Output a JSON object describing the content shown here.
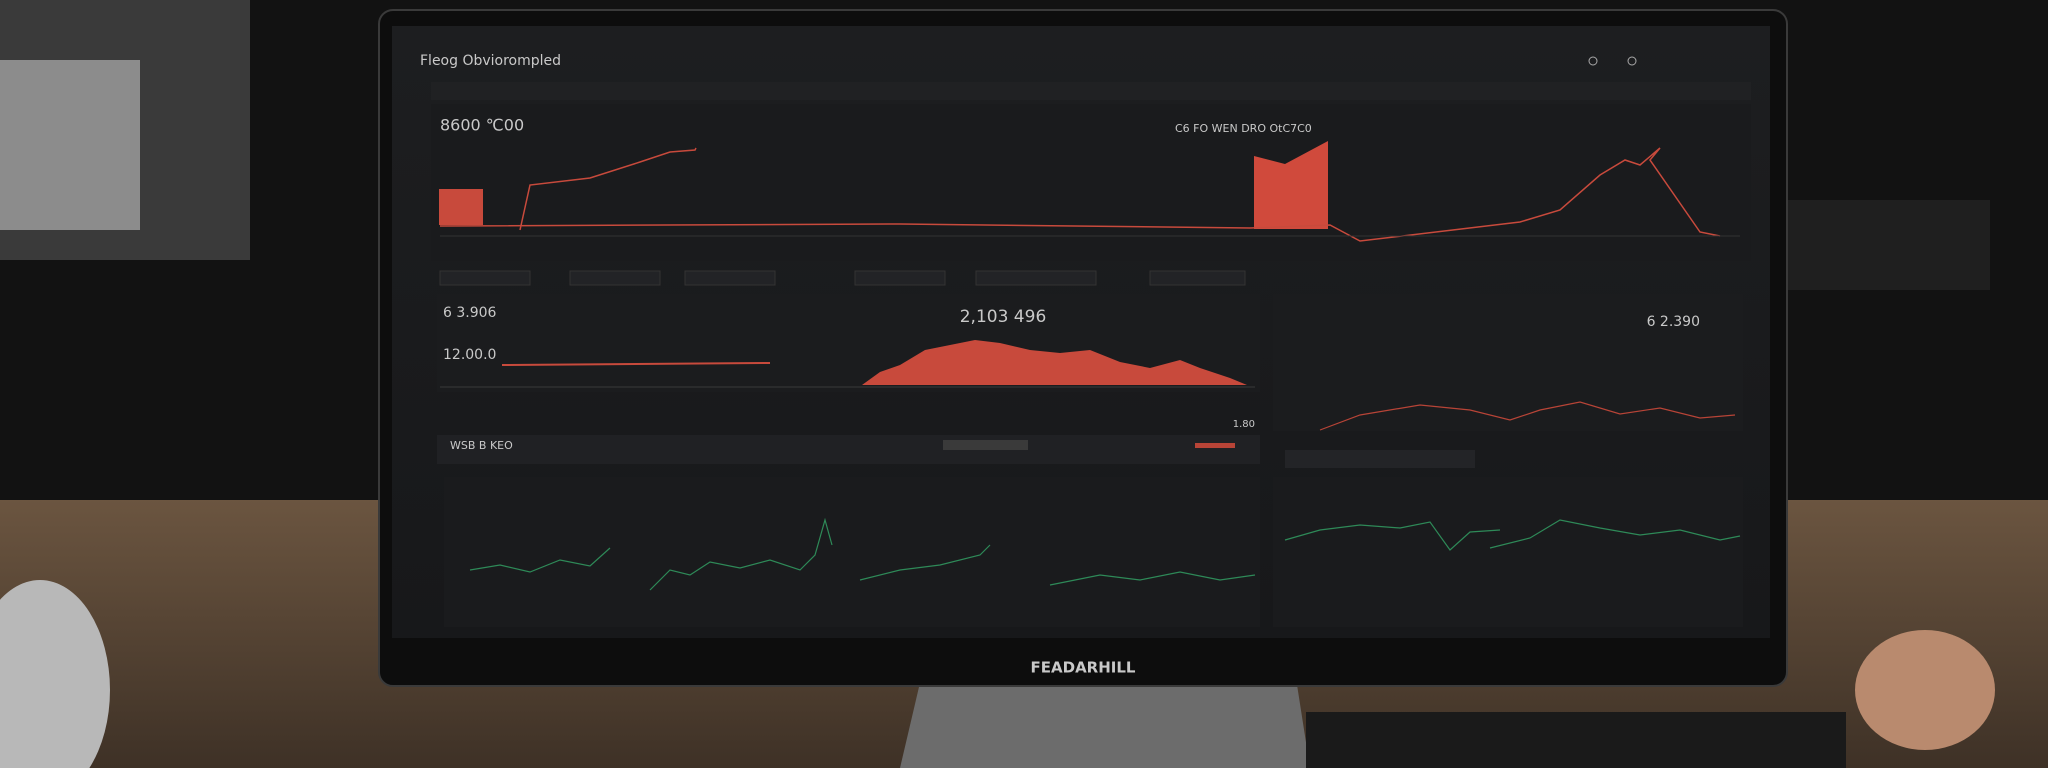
{
  "header": {
    "title": "Fleog Obviorompled"
  },
  "top_panel": {
    "stat": "8600 ℃00",
    "chart_label": "C6 FO WEN DRO OtC7C0"
  },
  "middle_panel": {
    "stat_a": "6 3.906",
    "stat_b": "12.00.0",
    "stat_center": "2,103 496",
    "stat_right": "6 2.390",
    "stat_small": "1.80"
  },
  "row": {
    "label": "WSB B KEO"
  },
  "monitor": {
    "brand": "FEADARHILL"
  }
}
